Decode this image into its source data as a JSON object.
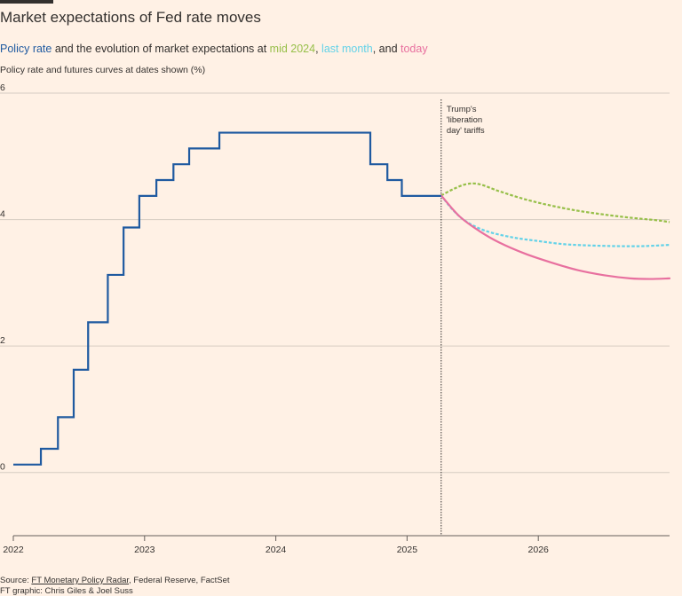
{
  "header": {
    "title": "Market expectations of Fed rate moves",
    "subtitle": {
      "policy": "Policy rate",
      "text1": " and the evolution of market expectations at ",
      "mid": "mid 2024",
      "sep1": ", ",
      "last": "last month",
      "sep2": ", and ",
      "today": "today"
    },
    "unit_label": "Policy rate and futures curves at dates shown (%)"
  },
  "colors": {
    "background": "#fff1e5",
    "policy": "#1f5aa0",
    "mid_2024": "#96bf48",
    "last_month": "#63d2e8",
    "today": "#e8709f",
    "grid": "#d6ccc2",
    "text": "#33302e"
  },
  "chart_data": {
    "type": "line",
    "title": "Market expectations of Fed rate moves",
    "ylabel": "Policy rate and futures curves at dates shown (%)",
    "xlim": [
      2022.0,
      2027.0
    ],
    "ylim": [
      -1,
      6
    ],
    "yticks": [
      0,
      2,
      4,
      6
    ],
    "xticks": [
      {
        "value": 2022,
        "label": "2022"
      },
      {
        "value": 2023,
        "label": "2023"
      },
      {
        "value": 2024,
        "label": "2024"
      },
      {
        "value": 2025,
        "label": "2025"
      },
      {
        "value": 2026,
        "label": "2026"
      }
    ],
    "annotation": {
      "x": 2025.26,
      "lines": [
        "Trump's",
        "'liberation",
        "day' tariffs"
      ]
    },
    "series": [
      {
        "name": "Policy rate",
        "style": "step",
        "points": [
          [
            2022.0,
            0.125
          ],
          [
            2022.21,
            0.375
          ],
          [
            2022.34,
            0.875
          ],
          [
            2022.46,
            1.625
          ],
          [
            2022.57,
            2.375
          ],
          [
            2022.72,
            3.125
          ],
          [
            2022.84,
            3.875
          ],
          [
            2022.96,
            4.375
          ],
          [
            2023.09,
            4.625
          ],
          [
            2023.22,
            4.875
          ],
          [
            2023.34,
            5.125
          ],
          [
            2023.57,
            5.375
          ],
          [
            2024.72,
            4.875
          ],
          [
            2024.85,
            4.625
          ],
          [
            2024.96,
            4.375
          ],
          [
            2025.26,
            4.375
          ]
        ]
      },
      {
        "name": "mid 2024",
        "style": "dashed",
        "points": [
          [
            2025.26,
            4.38
          ],
          [
            2025.35,
            4.48
          ],
          [
            2025.45,
            4.56
          ],
          [
            2025.55,
            4.56
          ],
          [
            2025.7,
            4.45
          ],
          [
            2025.9,
            4.32
          ],
          [
            2026.1,
            4.22
          ],
          [
            2026.3,
            4.14
          ],
          [
            2026.5,
            4.08
          ],
          [
            2026.7,
            4.03
          ],
          [
            2026.9,
            3.99
          ],
          [
            2027.0,
            3.96
          ]
        ]
      },
      {
        "name": "last month",
        "style": "dashed",
        "points": [
          [
            2025.26,
            4.38
          ],
          [
            2025.35,
            4.15
          ],
          [
            2025.45,
            3.97
          ],
          [
            2025.6,
            3.82
          ],
          [
            2025.8,
            3.72
          ],
          [
            2026.0,
            3.66
          ],
          [
            2026.2,
            3.61
          ],
          [
            2026.4,
            3.59
          ],
          [
            2026.6,
            3.58
          ],
          [
            2026.8,
            3.58
          ],
          [
            2027.0,
            3.6
          ]
        ]
      },
      {
        "name": "today",
        "style": "solid",
        "points": [
          [
            2025.26,
            4.38
          ],
          [
            2025.4,
            4.05
          ],
          [
            2025.55,
            3.82
          ],
          [
            2025.7,
            3.64
          ],
          [
            2025.9,
            3.46
          ],
          [
            2026.1,
            3.32
          ],
          [
            2026.3,
            3.2
          ],
          [
            2026.5,
            3.12
          ],
          [
            2026.7,
            3.07
          ],
          [
            2026.85,
            3.06
          ],
          [
            2027.0,
            3.07
          ]
        ]
      }
    ]
  },
  "footer": {
    "source_prefix": "Source: ",
    "source_link": "FT Monetary Policy Radar",
    "source_rest": ", Federal Reserve, FactSet",
    "graphic": "FT graphic: Chris Giles & Joel Suss"
  }
}
